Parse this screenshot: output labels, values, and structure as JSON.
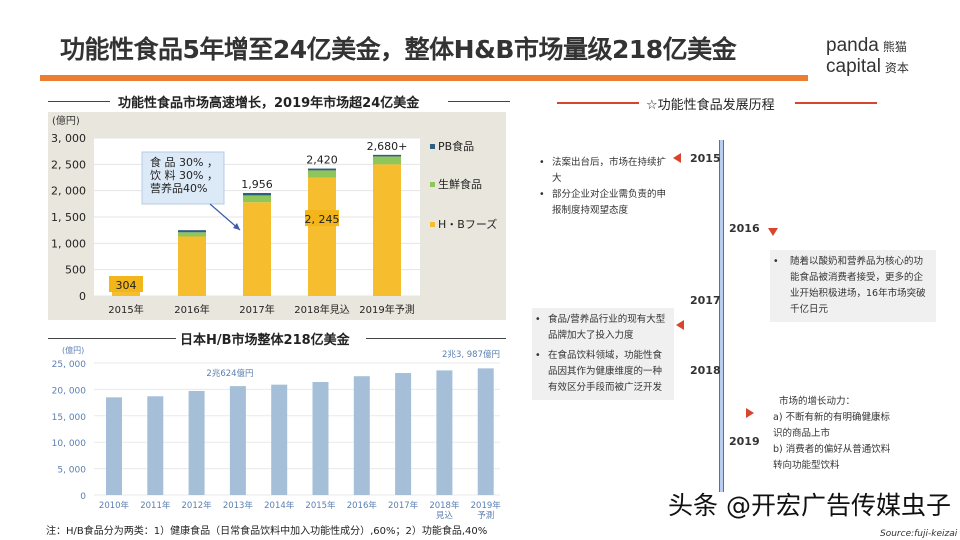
{
  "header": {
    "title": "功能性食品5年增至24亿美金，整体H&B市场量级218亿美金",
    "logo_en_1": "panda",
    "logo_en_2": "capital",
    "logo_cn_1": "熊猫",
    "logo_cn_2": "资本"
  },
  "chart_data": [
    {
      "type": "bar",
      "stacked": true,
      "title": "功能性食品市场高速增长，2019年市场超24亿美金",
      "ylabel": "(億円)",
      "ylim": [
        0,
        3000
      ],
      "yticks": [
        "0",
        "500",
        "1, 000",
        "1, 500",
        "2, 000",
        "2, 500",
        "3, 000"
      ],
      "categories": [
        "2015年",
        "2016年",
        "2017年",
        "2018年見込",
        "2019年予測"
      ],
      "series": [
        {
          "name": "H・Bフーズ",
          "color": "#f6bd2f",
          "values": [
            304,
            1130,
            1780,
            2245,
            2500
          ]
        },
        {
          "name": "生鮮食品",
          "color": "#8fc65a",
          "values": [
            30,
            80,
            130,
            140,
            150
          ]
        },
        {
          "name": "PB食品",
          "color": "#2f5f7f",
          "values": [
            20,
            40,
            46,
            35,
            30
          ]
        }
      ],
      "total_labels": [
        "",
        "",
        "1,956",
        "2,420",
        "2,680+"
      ],
      "inner_labels": [
        "304",
        "",
        "",
        "2, 245",
        ""
      ],
      "annotation": [
        "食 品 30% ，",
        "饮 料 30% ，",
        "营养品40%"
      ],
      "legend_position": "right",
      "background": "#e9e7dd"
    },
    {
      "type": "bar",
      "title": "日本H/B市场整体218亿美金",
      "ylabel": "(億円)",
      "ylim": [
        0,
        25000
      ],
      "yticks": [
        "0",
        "5, 000",
        "10, 000",
        "15, 000",
        "20, 000",
        "25, 000"
      ],
      "categories": [
        "2010年",
        "2011年",
        "2012年",
        "2013年",
        "2014年",
        "2015年",
        "2016年",
        "2017年",
        "2018年\n見込",
        "2019年\n予測"
      ],
      "values": [
        18500,
        18700,
        19700,
        20624,
        20900,
        21400,
        22500,
        23100,
        23600,
        23987
      ],
      "color": "#a6bfd9",
      "annotations": [
        {
          "category": "2013年",
          "text": "2兆624億円"
        },
        {
          "category": "2019年\n予測",
          "text": "2兆3, 987億円"
        }
      ]
    }
  ],
  "note": "注：H/B食品分为两类：1）健康食品（日常食品饮料中加入功能性成分）,60%；2）功能食品,40%",
  "timeline": {
    "title": "☆功能性食品发展历程",
    "years": [
      "2015",
      "2016",
      "2017",
      "2018",
      "2019"
    ],
    "box2015": [
      "法案出台后，市场在持续扩大",
      "部分企业对企业需负责的申报制度持观望态度"
    ],
    "box2016": [
      "随着以酸奶和营养品为核心的功能食品被消费者接受，更多的企业开始积极进场，16年市场突破千亿日元"
    ],
    "box2017": [
      "食品/营养品行业的现有大型品牌加大了投入力度",
      "在食品饮料领域，功能性食品因其作为健康维度的一种有效区分手段而被广泛开发"
    ],
    "box2019_head": "市场的增长动力：",
    "box2019_a": "a)  不断有新的有明确健康标识的商品上市",
    "box2019_b": "b)  消费者的偏好从普通饮料转向功能型饮料",
    "accent": "#d9442c",
    "line_color": "#b9cdf0"
  },
  "watermark": "头条 @开宏广告传媒虫子",
  "source": "Source:fuji-keizai"
}
